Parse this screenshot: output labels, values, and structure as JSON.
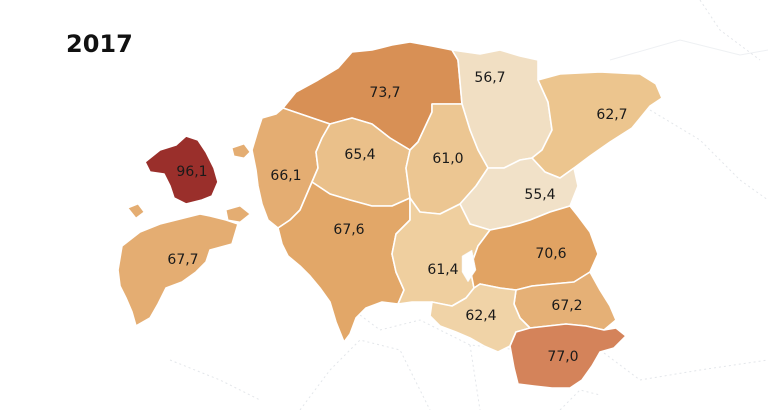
{
  "title": "2017",
  "map": {
    "regions": [
      {
        "id": "harju",
        "value": "73,7",
        "color": "#d89055"
      },
      {
        "id": "laane-viru",
        "value": "56,7",
        "color": "#f1dfc3"
      },
      {
        "id": "ida-viru",
        "value": "62,7",
        "color": "#ecc58e"
      },
      {
        "id": "hiiu",
        "value": "96,1",
        "color": "#9a2f2b"
      },
      {
        "id": "laane",
        "value": "66,1",
        "color": "#e4ad72"
      },
      {
        "id": "rapla",
        "value": "65,4",
        "color": "#eac08a"
      },
      {
        "id": "jarva",
        "value": "61,0",
        "color": "#ecc692"
      },
      {
        "id": "jogeva",
        "value": "55,4",
        "color": "#f1e1c8"
      },
      {
        "id": "saare",
        "value": "67,7",
        "color": "#e4ad72"
      },
      {
        "id": "parnu",
        "value": "67,6",
        "color": "#e2a768"
      },
      {
        "id": "viljandi",
        "value": "61,4",
        "color": "#efcf9f"
      },
      {
        "id": "tartu",
        "value": "70,6",
        "color": "#e1a363"
      },
      {
        "id": "polva",
        "value": "67,2",
        "color": "#e5b076"
      },
      {
        "id": "valga",
        "value": "62,4",
        "color": "#f0d3a7"
      },
      {
        "id": "voru",
        "value": "77,0",
        "color": "#d4835a"
      }
    ]
  }
}
